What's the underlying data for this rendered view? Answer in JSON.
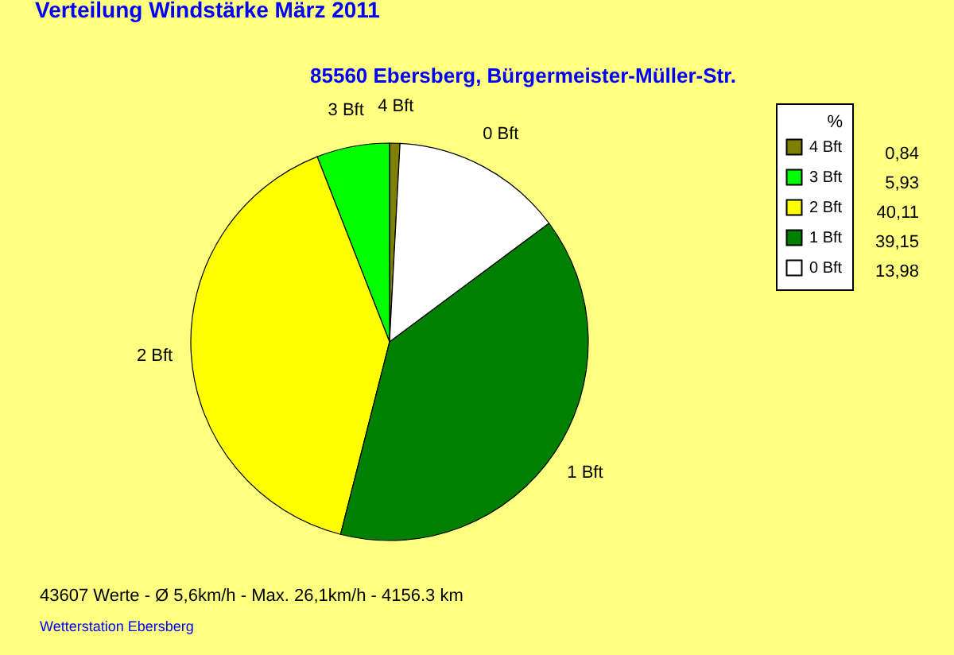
{
  "chart_data": {
    "type": "pie",
    "title": "Verteilung Windstärke  März 2011",
    "subtitle": "85560 Ebersberg, Bürgermeister-Müller-Str.",
    "categories": [
      "4 Bft",
      "3 Bft",
      "2 Bft",
      "1 Bft",
      "0 Bft"
    ],
    "values": [
      0.84,
      5.93,
      40.11,
      39.15,
      13.98
    ],
    "value_labels": [
      "0,84",
      "5,93",
      "40,11",
      "39,15",
      "13,98"
    ],
    "colors": [
      "#808000",
      "#00ff00",
      "#ffff00",
      "#008000",
      "#ffffff"
    ],
    "legend_title": "%",
    "legend": "top right",
    "annotations": [
      "43607 Werte   -   Ø 5,6km/h  -  Max. 26,1km/h   -   4156.3 km",
      "Wetterstation Ebersberg"
    ]
  }
}
